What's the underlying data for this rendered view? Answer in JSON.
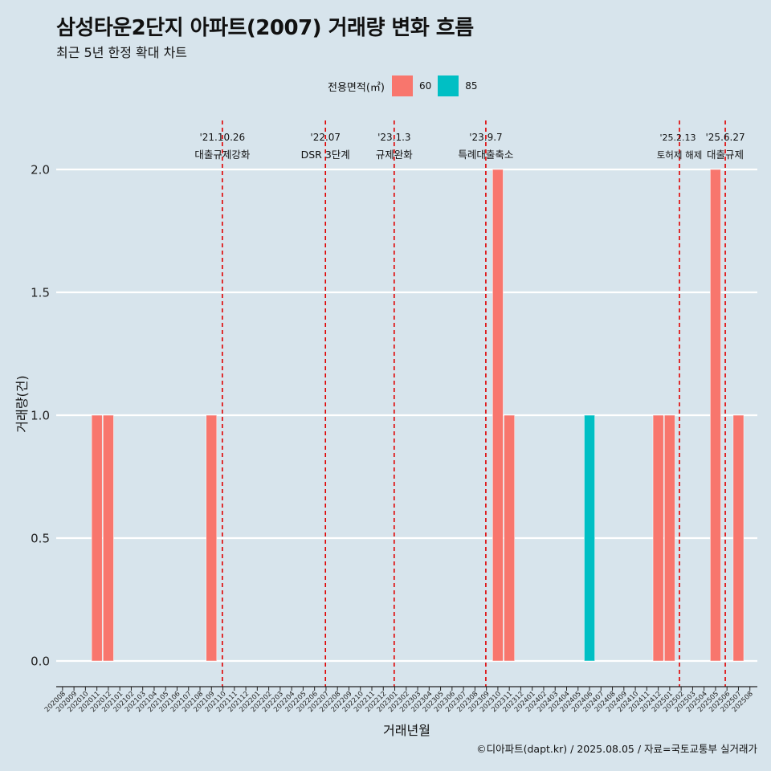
{
  "title": "삼성타운2단지 아파트(2007) 거래량 변화 흐름",
  "subtitle": "최근 5년 한정 확대 차트",
  "legend": {
    "title": "전용면적(㎡)",
    "items": [
      {
        "label": "60",
        "color": "#F8766D"
      },
      {
        "label": "85",
        "color": "#00BFC4"
      }
    ]
  },
  "caption": "©디아파트(dapt.kr) / 2025.08.05 / 자료=국토교통부 실거래가",
  "chart_data": {
    "type": "bar",
    "xlabel": "거래년월",
    "ylabel": "거래량(건)",
    "ylim": [
      0,
      2
    ],
    "yticks": [
      "0.0",
      "0.5",
      "1.0",
      "1.5",
      "2.0"
    ],
    "ytick_values": [
      0,
      0.5,
      1.0,
      1.5,
      2.0
    ],
    "grid": true,
    "legend_position": "top",
    "categories": [
      "202008",
      "202009",
      "202010",
      "202011",
      "202012",
      "202101",
      "202102",
      "202103",
      "202104",
      "202105",
      "202106",
      "202107",
      "202108",
      "202109",
      "202110",
      "202111",
      "202112",
      "202201",
      "202202",
      "202203",
      "202204",
      "202205",
      "202206",
      "202207",
      "202208",
      "202209",
      "202210",
      "202211",
      "202212",
      "202301",
      "202302",
      "202303",
      "202304",
      "202305",
      "202306",
      "202307",
      "202308",
      "202309",
      "202310",
      "202311",
      "202312",
      "202401",
      "202402",
      "202403",
      "202404",
      "202405",
      "202406",
      "202407",
      "202408",
      "202409",
      "202410",
      "202411",
      "202412",
      "202501",
      "202502",
      "202503",
      "202504",
      "202505",
      "202506",
      "202507",
      "202508"
    ],
    "series": [
      {
        "name": "60",
        "color": "#F8766D",
        "values": [
          0,
          0,
          0,
          1,
          1,
          0,
          0,
          0,
          0,
          0,
          0,
          0,
          0,
          1,
          0,
          0,
          0,
          0,
          0,
          0,
          0,
          0,
          0,
          0,
          0,
          0,
          0,
          0,
          0,
          0,
          0,
          0,
          0,
          0,
          0,
          0,
          0,
          0,
          2,
          1,
          0,
          0,
          0,
          0,
          0,
          0,
          0,
          0,
          0,
          0,
          0,
          0,
          1,
          1,
          0,
          0,
          0,
          2,
          0,
          1,
          0
        ]
      },
      {
        "name": "85",
        "color": "#00BFC4",
        "values": [
          0,
          0,
          0,
          0,
          0,
          0,
          0,
          0,
          0,
          0,
          0,
          0,
          0,
          0,
          0,
          0,
          0,
          0,
          0,
          0,
          0,
          0,
          0,
          0,
          0,
          0,
          0,
          0,
          0,
          0,
          0,
          0,
          0,
          0,
          0,
          0,
          0,
          0,
          0,
          0,
          0,
          0,
          0,
          0,
          0,
          0,
          1,
          0,
          0,
          0,
          0,
          0,
          0,
          0,
          0,
          0,
          0,
          0,
          0,
          0,
          0
        ]
      }
    ],
    "events": [
      {
        "date": "'21.10.26",
        "label": "대출규제강화",
        "x": 14.5
      },
      {
        "date": "'22.07",
        "label": "DSR 3단계",
        "x": 23.5
      },
      {
        "date": "'23.1.3",
        "label": "규제완화",
        "x": 29.5
      },
      {
        "date": "'23.9.7",
        "label": "특례대출축소",
        "x": 37.5
      },
      {
        "date": "'25.2.13",
        "label": "토허제 해제",
        "x": 54.4
      },
      {
        "date": "'25.6.27",
        "label": "대출규제",
        "x": 58.4
      }
    ]
  }
}
